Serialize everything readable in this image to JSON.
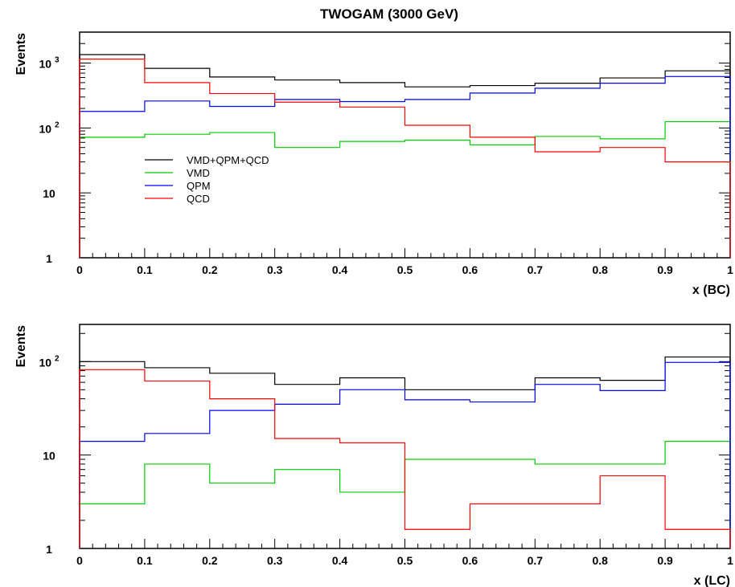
{
  "figure_title": "TWOGAM (3000 GeV)",
  "legend": [
    {
      "label": "VMD+QPM+QCD",
      "color": "#000000"
    },
    {
      "label": "VMD",
      "color": "#00cc00"
    },
    {
      "label": "QPM",
      "color": "#0000ff"
    },
    {
      "label": "QCD",
      "color": "#ff0000"
    }
  ],
  "chart_data": [
    {
      "type": "line",
      "step": true,
      "xlabel": "x (BC)",
      "ylabel": "Events",
      "log_y": true,
      "xlim": [
        0,
        1
      ],
      "ylim": [
        1,
        3000
      ],
      "x_ticks": [
        "0",
        "0.1",
        "0.2",
        "0.3",
        "0.4",
        "0.5",
        "0.6",
        "0.7",
        "0.8",
        "0.9",
        "1"
      ],
      "y_ticks": [
        {
          "value": 1,
          "label": "1"
        },
        {
          "value": 10,
          "label": "10"
        },
        {
          "value": 100,
          "base": "10",
          "exp": "2"
        },
        {
          "value": 1000,
          "base": "10",
          "exp": "3"
        }
      ],
      "bin_edges": [
        0,
        0.1,
        0.2,
        0.3,
        0.4,
        0.5,
        0.6,
        0.7,
        0.8,
        0.9,
        1.0
      ],
      "series": [
        {
          "name": "VMD+QPM+QCD",
          "color": "#000000",
          "values": [
            1350,
            830,
            610,
            550,
            500,
            430,
            450,
            490,
            590,
            760
          ]
        },
        {
          "name": "VMD",
          "color": "#00cc00",
          "values": [
            72,
            80,
            85,
            50,
            62,
            65,
            55,
            74,
            68,
            125
          ]
        },
        {
          "name": "QPM",
          "color": "#0000ff",
          "values": [
            180,
            260,
            215,
            275,
            255,
            275,
            345,
            410,
            490,
            620
          ]
        },
        {
          "name": "QCD",
          "color": "#ff0000",
          "values": [
            1150,
            500,
            340,
            250,
            210,
            110,
            72,
            43,
            50,
            30
          ]
        }
      ]
    },
    {
      "type": "line",
      "step": true,
      "xlabel": "x (LC)",
      "ylabel": "Events",
      "log_y": true,
      "xlim": [
        0,
        1
      ],
      "ylim": [
        1,
        250
      ],
      "x_ticks": [
        "0",
        "0.1",
        "0.2",
        "0.3",
        "0.4",
        "0.5",
        "0.6",
        "0.7",
        "0.8",
        "0.9",
        "1"
      ],
      "y_ticks": [
        {
          "value": 1,
          "label": "1"
        },
        {
          "value": 10,
          "label": "10"
        },
        {
          "value": 100,
          "base": "10",
          "exp": "2"
        }
      ],
      "bin_edges": [
        0,
        0.1,
        0.2,
        0.3,
        0.4,
        0.5,
        0.6,
        0.7,
        0.8,
        0.9,
        1.0
      ],
      "series": [
        {
          "name": "VMD+QPM+QCD",
          "color": "#000000",
          "values": [
            100,
            86,
            75,
            57,
            67,
            50,
            50,
            67,
            63,
            112
          ]
        },
        {
          "name": "VMD",
          "color": "#00cc00",
          "values": [
            3,
            8,
            5,
            7,
            4,
            9,
            9,
            8,
            8,
            14
          ]
        },
        {
          "name": "QPM",
          "color": "#0000ff",
          "values": [
            14,
            17,
            30,
            35,
            50,
            39,
            37,
            57,
            49,
            98
          ]
        },
        {
          "name": "QCD",
          "color": "#ff0000",
          "values": [
            82,
            62,
            40,
            15,
            13.5,
            1.6,
            3,
            3,
            6,
            1.6
          ]
        }
      ]
    }
  ]
}
